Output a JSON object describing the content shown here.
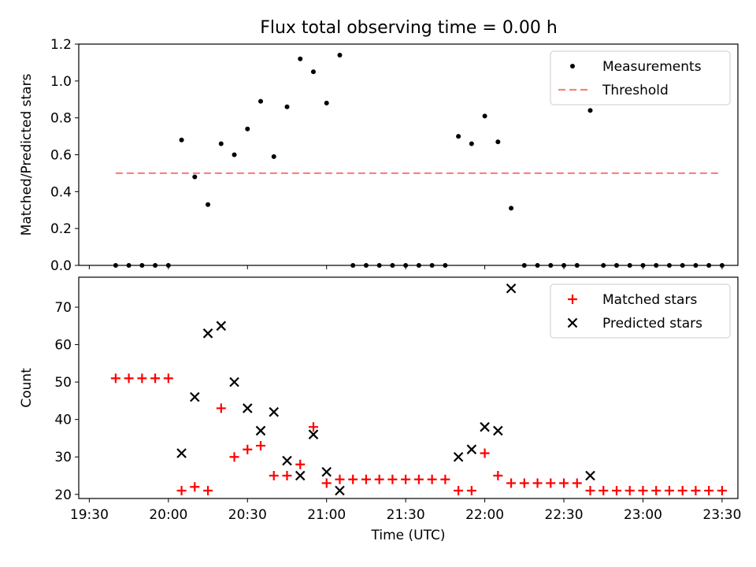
{
  "figure": {
    "title": "Flux total observing time = 0.00 h"
  },
  "chart_data": [
    {
      "type": "scatter",
      "panel": "top",
      "title": "Flux total observing time = 0.00 h",
      "xlabel": "",
      "ylabel": "Matched/Predicted stars",
      "ylim": [
        0.0,
        1.2
      ],
      "y_ticks": [
        "0.0",
        "0.2",
        "0.4",
        "0.6",
        "0.8",
        "1.0",
        "1.2"
      ],
      "xlim": [
        "19:26",
        "23:36"
      ],
      "legend_position": "top-right",
      "series": [
        {
          "name": "Measurements",
          "kind": "scatter",
          "marker": "dot",
          "color": "#000000",
          "x": [
            "19:40",
            "19:45",
            "19:50",
            "19:55",
            "20:00",
            "20:05",
            "20:10",
            "20:15",
            "20:20",
            "20:25",
            "20:30",
            "20:35",
            "20:40",
            "20:45",
            "20:50",
            "20:55",
            "21:00",
            "21:05",
            "21:10",
            "21:15",
            "21:20",
            "21:25",
            "21:30",
            "21:35",
            "21:40",
            "21:45",
            "21:50",
            "21:55",
            "22:00",
            "22:05",
            "22:10",
            "22:15",
            "22:20",
            "22:25",
            "22:30",
            "22:35",
            "22:40",
            "22:45",
            "22:50",
            "22:55",
            "23:00",
            "23:05",
            "23:10",
            "23:15",
            "23:20",
            "23:25",
            "23:30"
          ],
          "y": [
            0,
            0,
            0,
            0,
            0,
            0.68,
            0.48,
            0.33,
            0.66,
            0.6,
            0.74,
            0.89,
            0.59,
            0.86,
            1.12,
            1.05,
            0.88,
            1.14,
            0,
            0,
            0,
            0,
            0,
            0,
            0,
            0,
            0.7,
            0.66,
            0.81,
            0.67,
            0.31,
            0,
            0,
            0,
            0,
            0,
            0.84,
            0,
            0,
            0,
            0,
            0,
            0,
            0,
            0,
            0,
            0
          ]
        },
        {
          "name": "Threshold",
          "kind": "line",
          "style": "dashed",
          "color": "#ff7f7f",
          "x": [
            "19:40",
            "23:30"
          ],
          "y": [
            0.5,
            0.5
          ]
        }
      ]
    },
    {
      "type": "scatter",
      "panel": "bottom",
      "title": "",
      "xlabel": "Time (UTC)",
      "ylabel": "Count",
      "ylim": [
        18.9,
        78
      ],
      "y_ticks": [
        "20",
        "30",
        "40",
        "50",
        "60",
        "70"
      ],
      "xlim": [
        "19:26",
        "23:36"
      ],
      "x_ticks": [
        "19:30",
        "20:00",
        "20:30",
        "21:00",
        "21:30",
        "22:00",
        "22:30",
        "23:00",
        "23:30"
      ],
      "legend_position": "top-right",
      "series": [
        {
          "name": "Matched stars",
          "kind": "scatter",
          "marker": "plus",
          "color": "#ff0000",
          "x": [
            "19:40",
            "19:45",
            "19:50",
            "19:55",
            "20:00",
            "20:05",
            "20:10",
            "20:15",
            "20:20",
            "20:25",
            "20:30",
            "20:35",
            "20:40",
            "20:45",
            "20:50",
            "20:55",
            "21:00",
            "21:05",
            "21:10",
            "21:15",
            "21:20",
            "21:25",
            "21:30",
            "21:35",
            "21:40",
            "21:45",
            "21:50",
            "21:55",
            "22:00",
            "22:05",
            "22:10",
            "22:15",
            "22:20",
            "22:25",
            "22:30",
            "22:35",
            "22:40",
            "22:45",
            "22:50",
            "22:55",
            "23:00",
            "23:05",
            "23:10",
            "23:15",
            "23:20",
            "23:25",
            "23:30"
          ],
          "y": [
            51,
            51,
            51,
            51,
            51,
            21,
            22,
            21,
            43,
            30,
            32,
            33,
            25,
            25,
            28,
            38,
            23,
            24,
            24,
            24,
            24,
            24,
            24,
            24,
            24,
            24,
            21,
            21,
            31,
            25,
            23,
            23,
            23,
            23,
            23,
            23,
            21,
            21,
            21,
            21,
            21,
            21,
            21,
            21,
            21,
            21,
            21
          ]
        },
        {
          "name": "Predicted stars",
          "kind": "scatter",
          "marker": "x",
          "color": "#000000",
          "x": [
            "20:05",
            "20:10",
            "20:15",
            "20:20",
            "20:25",
            "20:30",
            "20:35",
            "20:40",
            "20:45",
            "20:50",
            "20:55",
            "21:00",
            "21:05",
            "21:50",
            "21:55",
            "22:00",
            "22:05",
            "22:10",
            "22:40"
          ],
          "y": [
            31,
            46,
            63,
            65,
            50,
            43,
            37,
            42,
            29,
            25,
            36,
            26,
            21,
            30,
            32,
            38,
            37,
            75,
            25
          ]
        }
      ]
    }
  ]
}
